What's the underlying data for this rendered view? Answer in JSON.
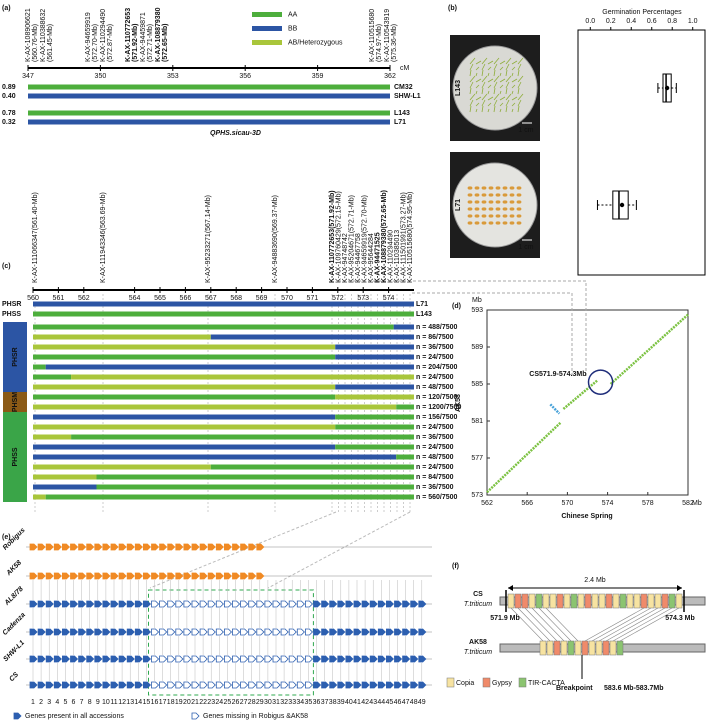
{
  "panel_labels": [
    "(a)",
    "(b)",
    "(c)",
    "(d)",
    "(e)",
    "(f)"
  ],
  "genotype_legend": [
    {
      "label": "AA",
      "color": "#4dae3c"
    },
    {
      "label": "BB",
      "color": "#2c55a4"
    },
    {
      "label": "AB/Heterozygous",
      "color": "#a9c63b"
    }
  ],
  "panel_a": {
    "markers": [
      {
        "name": "K-AX-108906621",
        "position": "(560.76-Mb)"
      },
      {
        "name": "K-AX-110388632",
        "position": "(561.45-Mb)"
      },
      {
        "name": "K-AX-94659919",
        "position": "(572.70-Mb)"
      },
      {
        "name": "K-AX-110294490",
        "position": "(572.87-Mb)"
      },
      {
        "name": "K-AX-110772653",
        "position": "(571.92-Mb)",
        "bold": true
      },
      {
        "name": "K-AX-94459871",
        "position": "(572.71-Mb)"
      },
      {
        "name": "K-AX-108879380",
        "position": "(572.65-Mb)",
        "bold": true
      },
      {
        "name": "K-AX-110515680",
        "position": "(574.97-Mb)"
      },
      {
        "name": "K-AX-110543919",
        "position": "(575.36-Mb)"
      }
    ],
    "axis_ticks": [
      347,
      350,
      353,
      356,
      359,
      362
    ],
    "xlim": [
      347,
      362
    ],
    "axis_unit": "cM",
    "lines": [
      {
        "score": "0.89",
        "name": "CM32",
        "genotype": 0
      },
      {
        "score": "0.40",
        "name": "SHW-L1",
        "genotype": 1
      },
      {
        "score": "0.78",
        "name": "L143",
        "genotype": 0
      },
      {
        "score": "0.32",
        "name": "L71",
        "genotype": 1
      }
    ],
    "title": "QPHS.sicau-3D"
  },
  "panel_b": {
    "title": "Germination Percentages",
    "xlim": [
      -0.12,
      1.12
    ],
    "ticks": [
      {
        "value": 0,
        "label": "0.0"
      },
      {
        "value": 0.2,
        "label": "0.2"
      },
      {
        "value": 0.4,
        "label": "0.4"
      },
      {
        "value": 0.6,
        "label": "0.6"
      },
      {
        "value": 0.8,
        "label": "0.8"
      },
      {
        "value": 1,
        "label": "1.0"
      }
    ],
    "samples": [
      {
        "label": "L143",
        "whisker_low": 0.66,
        "q1": 0.71,
        "median": 0.74,
        "q3": 0.79,
        "whisker_high": 0.84,
        "mean": 0.75
      },
      {
        "label": "L71",
        "whisker_low": 0.07,
        "q1": 0.22,
        "median": 0.28,
        "q3": 0.37,
        "whisker_high": 0.45,
        "mean": 0.31
      }
    ],
    "scale_bar": "1 cm"
  },
  "panel_c": {
    "markers": [
      {
        "label": "K-AX-111066347(561.40-Mb)"
      },
      {
        "label": "K-AX-111943346(563.69-Mb)"
      },
      {
        "label": "K-AX-95233271(567.14-Mb)"
      },
      {
        "label": "K-AX-94883690(569.37-Mb)"
      },
      {
        "label": "K-AX-110772653(571.92-Mb)",
        "bold": true
      },
      {
        "label": "K-AX-109760429(572.15-Mb)"
      },
      {
        "label": "K-AX-94748742"
      },
      {
        "label": "K-AX-95204671(572.71-Mb)"
      },
      {
        "label": "K-AX-94467758"
      },
      {
        "label": "K-AX-94659919(572.70-Mb)"
      },
      {
        "label": "K-AX-95644284"
      },
      {
        "label": "K-AX-94471525",
        "bold": true
      },
      {
        "label": "K-AX-108879380(572.65-Mb)",
        "bold": true
      },
      {
        "label": "K-AX-110294490"
      },
      {
        "label": "K-AX-110385013"
      },
      {
        "label": "K-AX-111501991(573.27-Mb)"
      },
      {
        "label": "K-AX-110515680(574.95-Mb)"
      }
    ],
    "axis_ticks": [
      560,
      561,
      562,
      564,
      565,
      566,
      567,
      568,
      569,
      570,
      571,
      572,
      573,
      574
    ],
    "xlim": [
      560,
      575
    ],
    "parents": [
      {
        "group": "PHSR",
        "line": "L71",
        "genotype": 1
      },
      {
        "group": "PHSS",
        "line": "L143",
        "genotype": 0
      }
    ],
    "rows": [
      {
        "n": "n = 488/7500",
        "left": 0,
        "right": 1,
        "switch": 574.2
      },
      {
        "n": "n = 86/7500",
        "left": 2,
        "right": 1,
        "switch": 567
      },
      {
        "n": "n = 36/7500",
        "left": 2,
        "right": 1,
        "switch": 571.9
      },
      {
        "n": "n = 24/7500",
        "left": 0,
        "right": 1,
        "switch": 571.9
      },
      {
        "n": "n = 204/7500",
        "left": 0,
        "right": 1,
        "switch": 560.5
      },
      {
        "n": "n = 24/7500",
        "left": 0,
        "right": 2,
        "switch": 561.5
      },
      {
        "n": "n = 48/7500",
        "left": 2,
        "right": 1,
        "switch": 571.9
      },
      {
        "n": "n = 120/7500",
        "left": 0,
        "right": 2,
        "switch": 571.9
      },
      {
        "n": "n = 1200/7500",
        "left": 2,
        "right": 0,
        "switch": 574.3
      },
      {
        "n": "n = 156/7500",
        "left": 1,
        "right": 0,
        "switch": 571.9
      },
      {
        "n": "n = 24/7500",
        "left": 2,
        "right": 0,
        "switch": 571.9
      },
      {
        "n": "n = 36/7500",
        "left": 2,
        "right": 0,
        "switch": 561.5
      },
      {
        "n": "n = 24/7500",
        "left": 1,
        "right": 0,
        "switch": 571.9
      },
      {
        "n": "n = 48/7500",
        "left": 1,
        "right": 0,
        "switch": 574.3
      },
      {
        "n": "n = 24/7500",
        "left": 2,
        "right": 0,
        "switch": 567
      },
      {
        "n": "n = 84/7500",
        "left": 2,
        "right": 0,
        "switch": 562.5
      },
      {
        "n": "n = 36/7500",
        "left": 1,
        "right": 0,
        "switch": 562.5
      },
      {
        "n": "n = 560/7500",
        "left": 2,
        "right": 0,
        "switch": 560.5
      }
    ],
    "groups": [
      {
        "label": "PHSR",
        "color": "#2c55a4",
        "rows": 7
      },
      {
        "label": "PHSM",
        "color": "#8b5a16",
        "rows": 2
      },
      {
        "label": "PHSS",
        "color": "#3aa548",
        "rows": 9
      }
    ]
  },
  "panel_d": {
    "xlim": [
      562,
      582
    ],
    "ylim": [
      573,
      593
    ],
    "xticks": [
      562,
      566,
      570,
      574,
      578,
      582
    ],
    "yticks": [
      573,
      577,
      581,
      585,
      589,
      593
    ],
    "unit": "Mb",
    "xlabel": "Chinese Spring",
    "ylabel": "AK58",
    "annotation": "CS571.9-574.3Mb",
    "segments": [
      {
        "color": "#7cc242",
        "x": [
          562,
          569.3
        ],
        "y": [
          573.3,
          580.8
        ]
      },
      {
        "color": "#4aa3d9",
        "x": [
          568.3,
          569.2
        ],
        "y": [
          582.8,
          581.8
        ]
      },
      {
        "color": "#7cc242",
        "x": [
          569.6,
          573
        ],
        "y": [
          582.3,
          585.4
        ]
      },
      {
        "color": "#7cc242",
        "x": [
          574.3,
          582
        ],
        "y": [
          585,
          592.5
        ]
      }
    ],
    "highlight": {
      "x": 573.3,
      "y": 585.2,
      "r": 1.2,
      "color": "#1f2d7a"
    }
  },
  "panel_e": {
    "accessions": [
      {
        "name": "Robigus",
        "color": "#f08a24",
        "lacks_region": true
      },
      {
        "name": "AK58",
        "color": "#f08a24",
        "lacks_region": true
      },
      {
        "name": "AL8/78",
        "color": "#2c5fb0"
      },
      {
        "name": "Cadenza",
        "color": "#2c5fb0"
      },
      {
        "name": "SHW-L1",
        "color": "#2c5fb0"
      },
      {
        "name": "CS",
        "color": "#2c5fb0"
      }
    ],
    "gene_numbers": [
      1,
      2,
      3,
      4,
      5,
      6,
      7,
      8,
      9,
      10,
      11,
      12,
      13,
      14,
      15,
      16,
      17,
      18,
      19,
      20,
      21,
      22,
      23,
      24,
      25,
      26,
      27,
      28,
      29,
      30,
      31,
      32,
      33,
      34,
      35,
      36,
      37,
      38,
      39,
      40,
      41,
      42,
      43,
      44,
      45,
      46,
      47,
      48,
      49
    ],
    "missing": [
      16,
      35
    ],
    "legend": [
      "Genes present in all accessions",
      "Genes missing in Robigus &AK58"
    ]
  },
  "panel_f": {
    "cs": {
      "name": "CS",
      "species": "T.triticum",
      "span": "2.4 Mb",
      "start": "571.9 Mb",
      "end": "574.3 Mb",
      "elements": [
        0,
        1,
        1,
        0,
        2,
        0,
        0,
        1,
        0,
        2,
        0,
        1,
        0,
        0,
        1,
        0,
        2,
        0,
        0,
        1,
        0,
        0,
        1,
        2,
        0
      ]
    },
    "ak58": {
      "name": "AK58",
      "species": "T.triticum",
      "elements": [
        0,
        0,
        1,
        0,
        2,
        0,
        1,
        0,
        0,
        1,
        0,
        2
      ]
    },
    "breakpoint": "Breakpoint",
    "breakpoint_range": "583.6 Mb-583.7Mb",
    "legend": [
      {
        "label": "Copia",
        "color": "#f7e3a1"
      },
      {
        "label": "Gypsy",
        "color": "#f08a6a"
      },
      {
        "label": "TIR-CACTA",
        "color": "#8bc470"
      }
    ]
  }
}
